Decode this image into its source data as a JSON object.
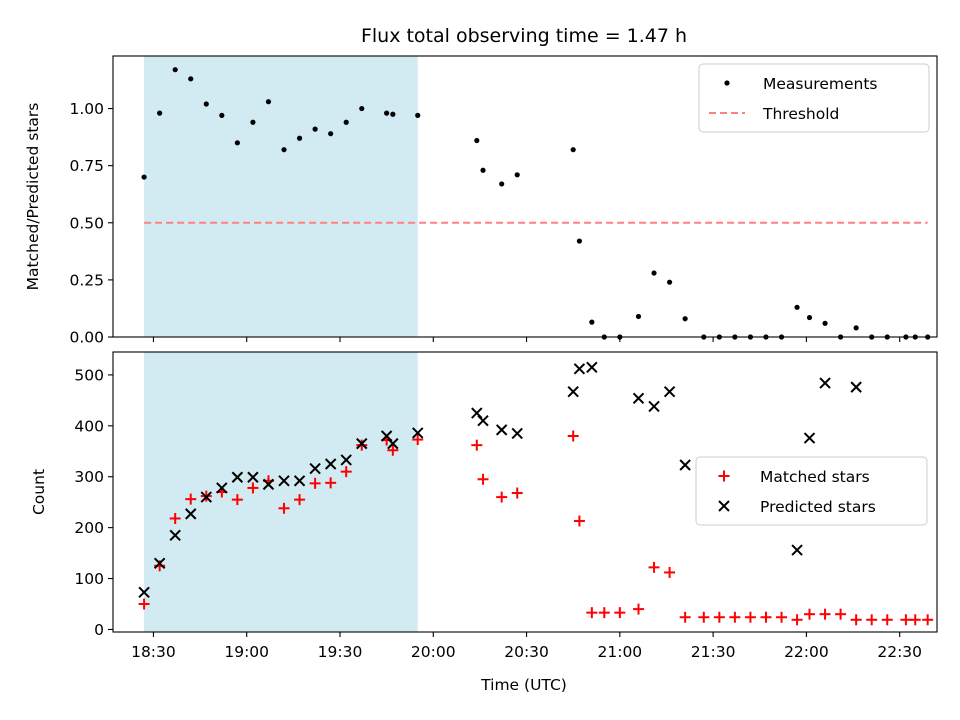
{
  "chart_data": {
    "title": "Flux total observing time = 1.47 h",
    "xlabel": "Time (UTC)",
    "x_tick_labels": [
      "18:30",
      "19:00",
      "19:30",
      "20:00",
      "20:30",
      "21:00",
      "21:30",
      "22:00",
      "22:30"
    ],
    "x_tick_values": [
      "18:30",
      "19:00",
      "19:30",
      "20:00",
      "20:30",
      "21:00",
      "21:30",
      "22:00",
      "22:30"
    ],
    "xlim": [
      "18:17",
      "22:42"
    ],
    "shaded_interval": [
      "18:27",
      "19:55"
    ],
    "shade_color": "#add8e6",
    "panels": [
      {
        "type": "scatter",
        "ylabel": "Matched/Predicted stars",
        "ylim": [
          0,
          1.23
        ],
        "y_tick_labels": [
          "0.00",
          "0.25",
          "0.50",
          "0.75",
          "1.00"
        ],
        "y_ticks": [
          0,
          0.25,
          0.5,
          0.75,
          1.0
        ],
        "legend_position": "upper right",
        "legend": [
          "Measurements",
          "Threshold"
        ],
        "threshold": {
          "name": "Threshold",
          "value": 0.5,
          "x_range": [
            "18:27",
            "22:42"
          ],
          "color": "#ff8080"
        },
        "series": [
          {
            "name": "Measurements",
            "marker": "dot",
            "color": "#000000",
            "x": [
              "18:27",
              "18:32",
              "18:37",
              "18:42",
              "18:47",
              "18:52",
              "18:57",
              "19:02",
              "19:07",
              "19:12",
              "19:17",
              "19:22",
              "19:27",
              "19:32",
              "19:37",
              "19:45",
              "19:47",
              "19:55",
              "20:14",
              "20:16",
              "20:22",
              "20:27",
              "20:45",
              "20:47",
              "20:51",
              "20:55",
              "21:00",
              "21:06",
              "21:11",
              "21:16",
              "21:21",
              "21:27",
              "21:32",
              "21:37",
              "21:42",
              "21:47",
              "21:52",
              "21:57",
              "22:01",
              "22:06",
              "22:11",
              "22:16",
              "22:21",
              "22:26",
              "22:32",
              "22:35",
              "22:39"
            ],
            "y": [
              0.7,
              0.98,
              1.17,
              1.13,
              1.02,
              0.97,
              0.85,
              0.94,
              1.03,
              0.82,
              0.87,
              0.91,
              0.89,
              0.94,
              1.0,
              0.98,
              0.975,
              0.97,
              0.86,
              0.73,
              0.67,
              0.71,
              0.82,
              0.42,
              0.065,
              0.0,
              0.0,
              0.09,
              0.28,
              0.24,
              0.08,
              0.0,
              0.0,
              0.0,
              0.0,
              0.0,
              0.0,
              0.13,
              0.085,
              0.06,
              0.0,
              0.04,
              0.0,
              0.0,
              0.0,
              0.0,
              0.0
            ]
          }
        ]
      },
      {
        "type": "scatter",
        "ylabel": "Count",
        "ylim": [
          -5,
          545
        ],
        "y_tick_labels": [
          "0",
          "100",
          "200",
          "300",
          "400",
          "500"
        ],
        "y_ticks": [
          0,
          100,
          200,
          300,
          400,
          500
        ],
        "legend_position": "center right",
        "legend": [
          "Matched stars",
          "Predicted stars"
        ],
        "series": [
          {
            "name": "Matched stars",
            "marker": "plus",
            "color": "#ff0000",
            "x": [
              "18:27",
              "18:32",
              "18:37",
              "18:42",
              "18:47",
              "18:52",
              "18:57",
              "19:02",
              "19:07",
              "19:12",
              "19:17",
              "19:22",
              "19:27",
              "19:32",
              "19:37",
              "19:45",
              "19:47",
              "19:55",
              "20:14",
              "20:16",
              "20:22",
              "20:27",
              "20:45",
              "20:47",
              "20:51",
              "20:55",
              "21:00",
              "21:06",
              "21:11",
              "21:16",
              "21:21",
              "21:27",
              "21:32",
              "21:37",
              "21:42",
              "21:47",
              "21:52",
              "21:57",
              "22:01",
              "22:06",
              "22:11",
              "22:16",
              "22:21",
              "22:26",
              "22:32",
              "22:35",
              "22:39"
            ],
            "y": [
              50,
              125,
              218,
              256,
              262,
              270,
              255,
              278,
              292,
              238,
              255,
              287,
              288,
              310,
              362,
              372,
              352,
              373,
              362,
              295,
              260,
              268,
              380,
              213,
              33,
              33,
              33,
              40,
              122,
              112,
              24,
              24,
              24,
              24,
              24,
              24,
              24,
              19,
              30,
              30,
              30,
              19,
              19,
              19,
              19,
              19,
              19
            ]
          },
          {
            "name": "Predicted stars",
            "marker": "x",
            "color": "#000000",
            "x": [
              "18:27",
              "18:32",
              "18:37",
              "18:42",
              "18:47",
              "18:52",
              "18:57",
              "19:02",
              "19:07",
              "19:12",
              "19:17",
              "19:22",
              "19:27",
              "19:32",
              "19:37",
              "19:45",
              "19:47",
              "19:55",
              "20:14",
              "20:16",
              "20:22",
              "20:27",
              "20:45",
              "20:47",
              "20:51",
              "21:06",
              "21:11",
              "21:16",
              "21:21",
              "21:57",
              "22:01",
              "22:06",
              "22:16"
            ],
            "y": [
              73,
              130,
              185,
              227,
              260,
              278,
              299,
              299,
              285,
              292,
              292,
              316,
              325,
              333,
              365,
              380,
              365,
              386,
              425,
              410,
              392,
              385,
              467,
              512,
              515,
              454,
              438,
              467,
              323,
              156,
              376,
              484,
              476
            ]
          }
        ]
      }
    ]
  }
}
